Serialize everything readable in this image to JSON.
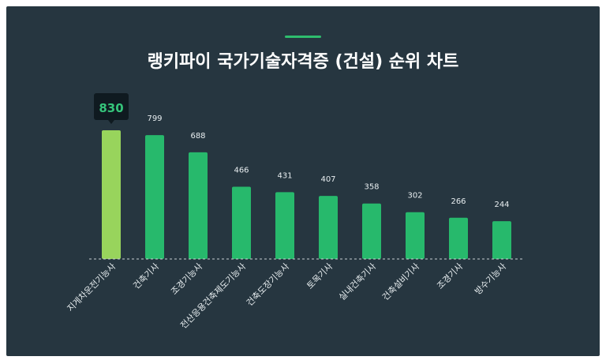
{
  "title": "랭키파이 국가기술자격증 (건설) 순위 차트",
  "colors": {
    "background": "#263640",
    "bar": "#27b96c",
    "highlight": "#98d45c",
    "accent": "#2ebd6e",
    "tooltip_bg": "#0f1a20",
    "tooltip_text": "#35c47a"
  },
  "chart_data": {
    "type": "bar",
    "title": "랭키파이 국가기술자격증 (건설) 순위 차트",
    "categories": [
      "지게차운전기능사",
      "건축기사",
      "조경기능사",
      "전산응용건축제도기능사",
      "건축도장기능사",
      "토목기사",
      "실내건축기사",
      "건축설비기사",
      "조경기사",
      "방수기능사"
    ],
    "values": [
      830,
      799,
      688,
      466,
      431,
      407,
      358,
      302,
      266,
      244
    ],
    "highlight_index": 0,
    "xlabel": "",
    "ylabel": "",
    "ylim": [
      0,
      830
    ],
    "grid": false
  }
}
